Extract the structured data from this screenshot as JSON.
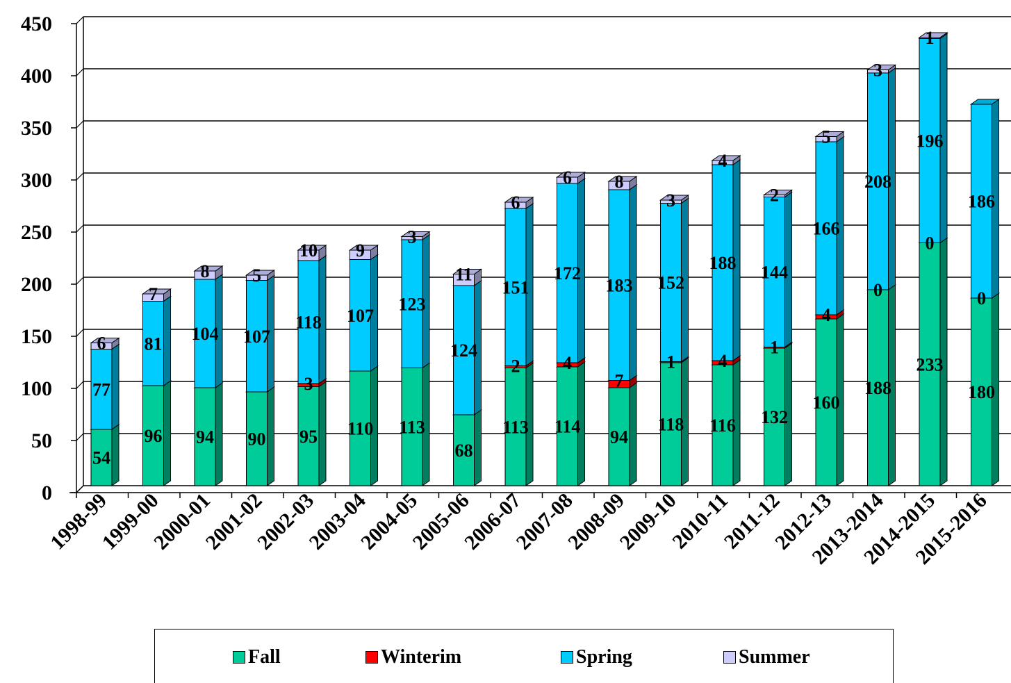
{
  "chart_data": {
    "type": "bar",
    "stacked": true,
    "categories": [
      "1998-99",
      "1999-00",
      "2000-01",
      "2001-02",
      "2002-03",
      "2003-04",
      "2004-05",
      "2005-06",
      "2006-07",
      "2007-08",
      "2008-09",
      "2009-10",
      "2010-11",
      "2011-12",
      "2012-13",
      "2013-2014",
      "2014-2015",
      "2015-2016"
    ],
    "series": [
      {
        "name": "Fall",
        "color": "#00CC99",
        "values": [
          54,
          96,
          94,
          90,
          95,
          110,
          113,
          68,
          113,
          114,
          94,
          118,
          116,
          132,
          160,
          188,
          233,
          180
        ]
      },
      {
        "name": "Winterim",
        "color": "#FF0000",
        "values": [
          0,
          0,
          0,
          0,
          3,
          0,
          0,
          0,
          2,
          4,
          7,
          1,
          4,
          1,
          4,
          0,
          0,
          0
        ]
      },
      {
        "name": "Spring",
        "color": "#00CCFF",
        "values": [
          77,
          81,
          104,
          107,
          118,
          107,
          123,
          124,
          151,
          172,
          183,
          152,
          188,
          144,
          166,
          208,
          196,
          186
        ]
      },
      {
        "name": "Summer",
        "color": "#CCCCFF",
        "values": [
          6,
          7,
          8,
          5,
          10,
          9,
          3,
          11,
          6,
          6,
          8,
          3,
          4,
          2,
          5,
          3,
          1,
          0
        ]
      }
    ],
    "data_labels": {
      "Fall": [
        "54",
        "96",
        "94",
        "90",
        "95",
        "110",
        "113",
        "68",
        "113",
        "114",
        "94",
        "118",
        "116",
        "132",
        "160",
        "188",
        "233",
        "180"
      ],
      "Winterim": [
        "",
        "",
        "",
        "",
        "3",
        "",
        "",
        "",
        "2",
        "4",
        "7",
        "1",
        "4",
        "1",
        "4",
        "0",
        "0",
        "0"
      ],
      "Spring": [
        "77",
        "81",
        "104",
        "107",
        "118",
        "107",
        "123",
        "124",
        "151",
        "172",
        "183",
        "152",
        "188",
        "144",
        "166",
        "208",
        "196",
        "186"
      ],
      "Summer": [
        "6",
        "7",
        "8",
        "5",
        "10",
        "9",
        "3",
        "11",
        "6",
        "6",
        "8",
        "3",
        "4",
        "2",
        "5",
        "3",
        "1",
        ""
      ]
    },
    "y_ticks": [
      "0",
      "50",
      "100",
      "150",
      "200",
      "250",
      "300",
      "350",
      "400",
      "450"
    ],
    "ylim": [
      0,
      450
    ],
    "grid": true,
    "legend_position": "bottom",
    "title": "",
    "xlabel": "",
    "ylabel": ""
  }
}
